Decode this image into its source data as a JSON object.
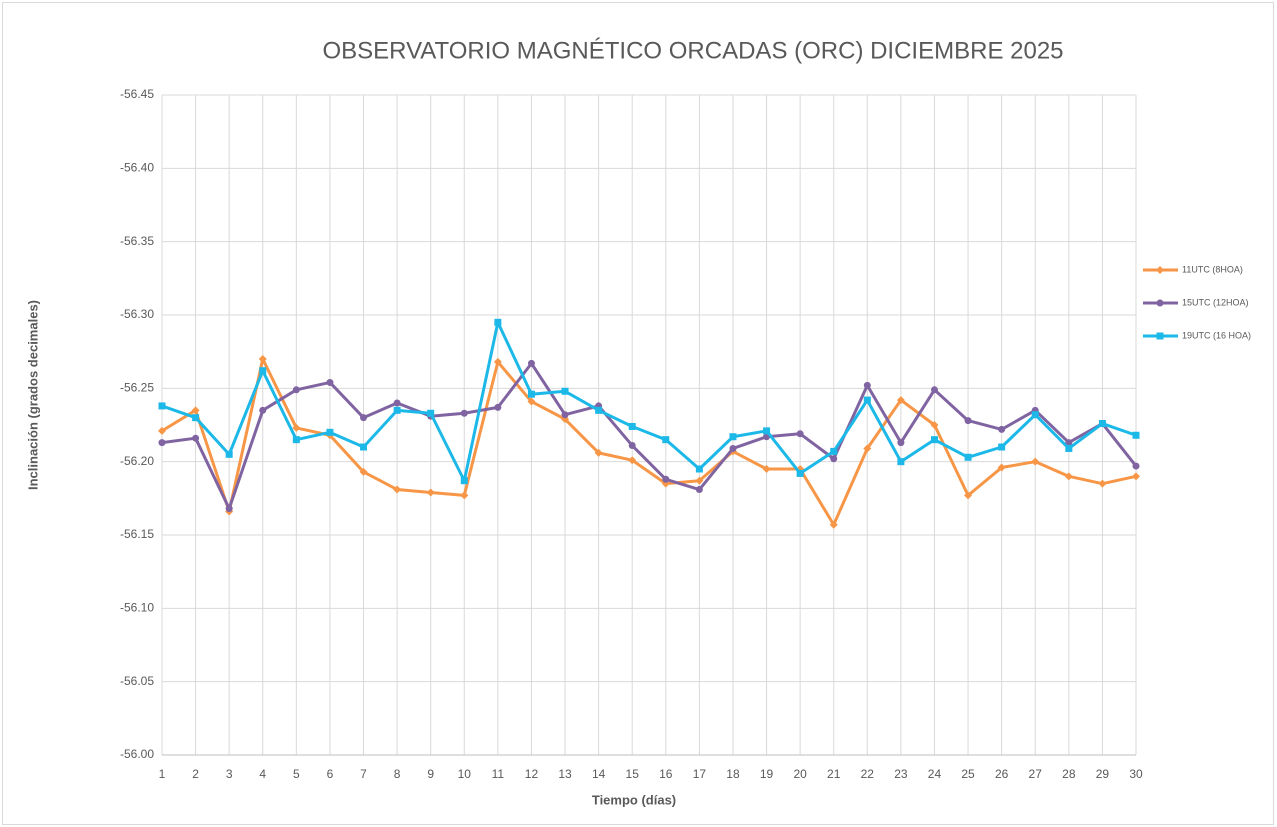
{
  "chart_data": {
    "type": "line",
    "title": "OBSERVATORIO MAGNÉTICO ORCADAS (ORC) DICIEMBRE 2025",
    "x_label": "Tiempo (días)",
    "y_label": "Inclinación (grados decimales)",
    "x": [
      1,
      2,
      3,
      4,
      5,
      6,
      7,
      8,
      9,
      10,
      11,
      12,
      13,
      14,
      15,
      16,
      17,
      18,
      19,
      20,
      21,
      22,
      23,
      24,
      25,
      26,
      27,
      28,
      29,
      30
    ],
    "xlim": [
      1,
      30
    ],
    "xticks": [
      1,
      2,
      3,
      4,
      5,
      6,
      7,
      8,
      9,
      10,
      11,
      12,
      13,
      14,
      15,
      16,
      17,
      18,
      19,
      20,
      21,
      22,
      23,
      24,
      25,
      26,
      27,
      28,
      29,
      30
    ],
    "ylim": [
      -56.0,
      -56.45
    ],
    "yticks": [
      {
        "value": -56.0,
        "label": "-56.00"
      },
      -56.05,
      {
        "value": -56.1,
        "label": "-56.10"
      },
      -56.15,
      {
        "value": -56.2,
        "label": "-56.20"
      },
      -56.25,
      {
        "value": -56.3,
        "label": "-56.30"
      },
      -56.35,
      {
        "value": -56.4,
        "label": "-56.40"
      },
      -56.45
    ],
    "grid": true,
    "legend": "right",
    "series": [
      {
        "name": "11UTC (8HOA)",
        "color": "#f79646",
        "marker": "diamond",
        "values": [
          -56.221,
          -56.235,
          -56.166,
          -56.27,
          -56.223,
          -56.218,
          -56.193,
          -56.181,
          -56.179,
          -56.177,
          -56.268,
          -56.241,
          -56.229,
          -56.206,
          -56.201,
          -56.185,
          -56.187,
          -56.207,
          -56.195,
          -56.195,
          -56.157,
          -56.209,
          -56.242,
          -56.225,
          -56.177,
          -56.196,
          -56.2,
          -56.19,
          -56.185,
          -56.19
        ]
      },
      {
        "name": "15UTC (12HOA)",
        "color": "#8064a2",
        "marker": "circle",
        "values": [
          -56.213,
          -56.216,
          -56.168,
          -56.235,
          -56.249,
          -56.254,
          -56.23,
          -56.24,
          -56.231,
          -56.233,
          -56.237,
          -56.267,
          -56.232,
          -56.238,
          -56.211,
          -56.188,
          -56.181,
          -56.209,
          -56.217,
          -56.219,
          -56.202,
          -56.252,
          -56.213,
          -56.249,
          -56.228,
          -56.222,
          -56.235,
          -56.213,
          -56.226,
          -56.197
        ]
      },
      {
        "name": "19UTC (16 HOA)",
        "color": "#1cb8e8",
        "marker": "square",
        "values": [
          -56.238,
          -56.23,
          -56.205,
          -56.262,
          -56.215,
          -56.22,
          -56.21,
          -56.235,
          -56.233,
          -56.187,
          -56.295,
          -56.246,
          -56.248,
          -56.235,
          -56.224,
          -56.215,
          -56.195,
          -56.217,
          -56.221,
          -56.192,
          -56.207,
          -56.242,
          -56.2,
          -56.215,
          -56.203,
          -56.21,
          -56.232,
          -56.209,
          -56.226,
          -56.218
        ]
      }
    ]
  }
}
